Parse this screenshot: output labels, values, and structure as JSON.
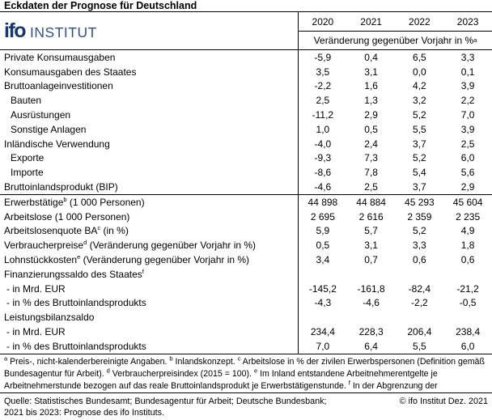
{
  "title": "Eckdaten der Prognose für Deutschland",
  "logo": {
    "ifo": "ifo",
    "institut": "INSTITUT"
  },
  "colors": {
    "logo_navy": "#17366b",
    "logo_steel_blue": "#33517e",
    "rule_black": "#000000"
  },
  "table": {
    "years": [
      "2020",
      "2021",
      "2022",
      "2023"
    ],
    "unit_note": "Veränderung gegenüber Vorjahr in %^a^",
    "sections": [
      {
        "rows": [
          {
            "label": "Private Konsumausgaben",
            "indent": 0,
            "values": [
              "-5,9",
              "0,4",
              "6,5",
              "3,3"
            ]
          },
          {
            "label": "Konsumausgaben des Staates",
            "indent": 0,
            "values": [
              "3,5",
              "3,1",
              "0,0",
              "0,1"
            ]
          },
          {
            "label": "Bruttoanlageinvestitionen",
            "indent": 0,
            "values": [
              "-2,2",
              "1,6",
              "4,2",
              "3,9"
            ]
          },
          {
            "label": "Bauten",
            "indent": 1,
            "values": [
              "2,5",
              "1,3",
              "3,2",
              "2,2"
            ]
          },
          {
            "label": "Ausrüstungen",
            "indent": 1,
            "values": [
              "-11,2",
              "2,9",
              "5,2",
              "7,0"
            ]
          },
          {
            "label": "Sonstige Anlagen",
            "indent": 1,
            "values": [
              "1,0",
              "0,5",
              "5,5",
              "3,9"
            ]
          },
          {
            "label": "Inländische Verwendung",
            "indent": 0,
            "values": [
              "-4,0",
              "2,4",
              "3,7",
              "2,5"
            ]
          },
          {
            "label": "Exporte",
            "indent": 1,
            "values": [
              "-9,3",
              "7,3",
              "5,2",
              "6,0"
            ]
          },
          {
            "label": "Importe",
            "indent": 1,
            "values": [
              "-8,6",
              "7,8",
              "5,4",
              "5,6"
            ]
          },
          {
            "label": "Bruttoinlandsprodukt (BIP)",
            "indent": 0,
            "values": [
              "-4,6",
              "2,5",
              "3,7",
              "2,9"
            ]
          }
        ]
      },
      {
        "rows": [
          {
            "label": "Erwerbstätige^b^ (1 000 Personen)",
            "indent": 0,
            "values": [
              "44 898",
              "44 884",
              "45 293",
              "45 604"
            ]
          },
          {
            "label": "Arbeitslose (1 000 Personen)",
            "indent": 0,
            "values": [
              "2 695",
              "2 616",
              "2 359",
              "2 235"
            ]
          },
          {
            "label": "Arbeitslosenquote BA^c^ (in %)",
            "indent": 0,
            "values": [
              "5,9",
              "5,7",
              "5,2",
              "4,9"
            ]
          },
          {
            "label": "Verbraucherpreise^d^ (Veränderung gegenüber Vorjahr in %)",
            "indent": 0,
            "values": [
              "0,5",
              "3,1",
              "3,3",
              "1,8"
            ]
          },
          {
            "label": "Lohnstückkosten^e^ (Veränderung gegenüber Vorjahr in %)",
            "indent": 0,
            "values": [
              "3,4",
              "0,7",
              "0,6",
              "0,6"
            ]
          },
          {
            "label": "Finanzierungssaldo des Staates^f^",
            "indent": 0,
            "values": [
              "",
              "",
              "",
              ""
            ]
          },
          {
            "label": "- in Mrd. EUR",
            "indent": 2,
            "values": [
              "-145,2",
              "-161,8",
              "-82,4",
              "-21,2"
            ]
          },
          {
            "label": "- in % des Bruttoinlandsprodukts",
            "indent": 2,
            "values": [
              "-4,3",
              "-4,6",
              "-2,2",
              "-0,5"
            ]
          },
          {
            "label": "Leistungsbilanzsaldo",
            "indent": 0,
            "values": [
              "",
              "",
              "",
              ""
            ]
          },
          {
            "label": "- in Mrd. EUR",
            "indent": 2,
            "values": [
              "234,4",
              "228,3",
              "206,4",
              "238,4"
            ]
          },
          {
            "label": "- in % des Bruttoinlandsprodukts",
            "indent": 2,
            "values": [
              "7,0",
              "6,4",
              "5,5",
              "6,0"
            ]
          }
        ]
      }
    ]
  },
  "footnotes": "^a^ Preis-, nicht-kalenderbereinigte Angaben. ^b^ Inlandskonzept. ^c^ Arbeitslose in % der zivilen Erwerbspersonen (Definition gemäß Bundesagentur für Arbeit). ^d^ Verbraucherpreisindex (2015 = 100). ^e^ Im Inland entstandene Arbeitnehmerentgelte je Arbeitnehmerstunde bezogen auf das reale Bruttoinlandsprodukt je Erwerbstätigenstunde. ^f^ In der Abgrenzung der",
  "source": {
    "line1_left": "Quelle: Statistisches Bundesamt; Bundesagentur für Arbeit; Deutsche Bundesbank;",
    "line1_right": "© ifo Institut Dez. 2021",
    "line2": "2021 bis 2023: Prognose des ifo Instituts."
  }
}
